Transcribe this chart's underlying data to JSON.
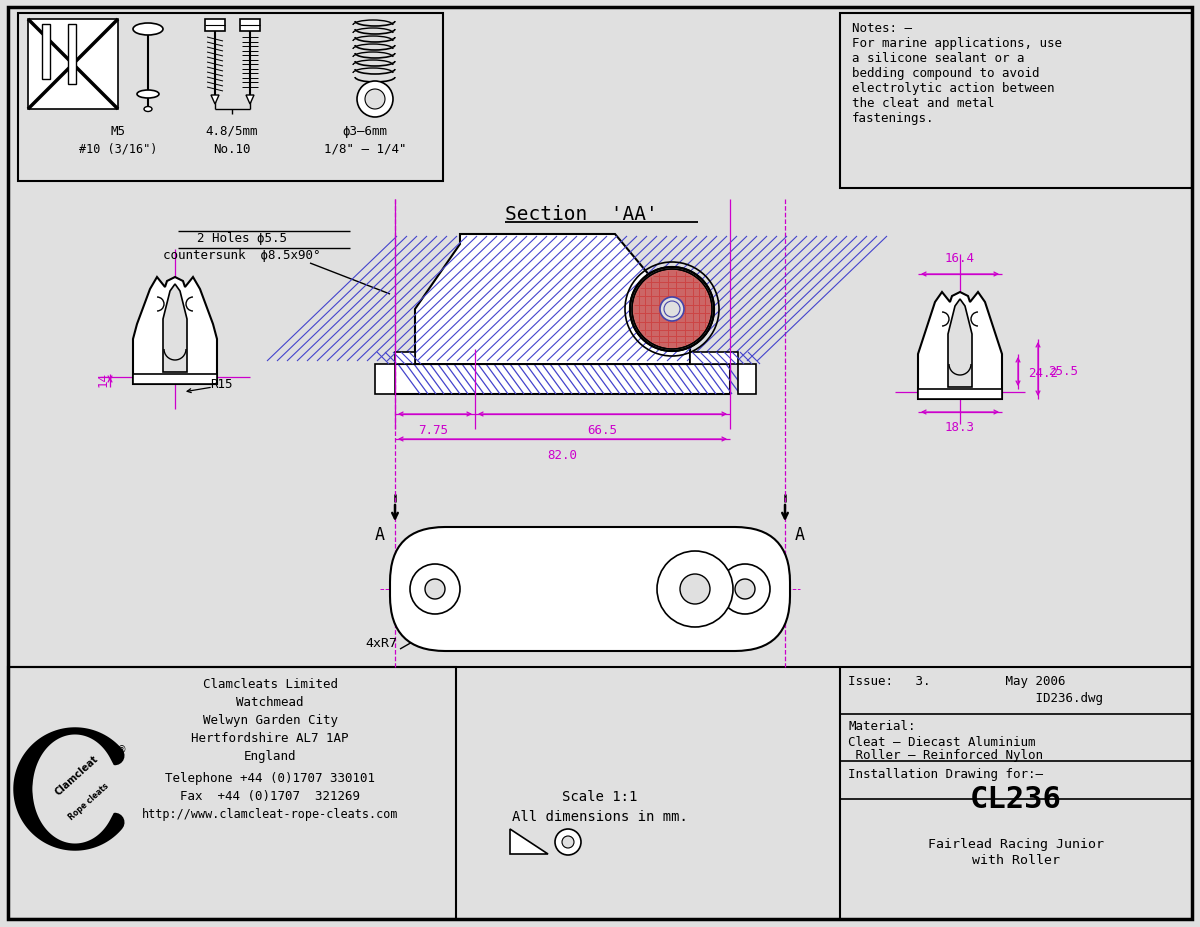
{
  "bg_color": "#e0e0e0",
  "border_color": "#000000",
  "dim_color": "#cc00cc",
  "hatch_color": "#4444cc",
  "roller_fill": "#cc6666",
  "notes_text": "Notes: –\nFor marine applications, use\na silicone sealant or a\nbedding compound to avoid\nelectrolytic action between\nthe cleat and metal\nfastenings.",
  "issue_line1": "Issue:   3.          May 2006",
  "issue_line2": "                         ID236.dwg",
  "material_line1": "Material:",
  "material_line2": "Cleat – Diecast Aluminium",
  "material_line3": " Roller – Reinforced Nylon",
  "installation_text": "Installation Drawing for:–",
  "model_number": "CL236",
  "model_desc1": "Fairlead Racing Junior",
  "model_desc2": "with Roller",
  "company_line1": "Clamcleats Limited",
  "company_line2": "Watchmead",
  "company_line3": "Welwyn Garden City",
  "company_line4": "Hertfordshire AL7 1AP",
  "company_line5": "England",
  "tel_line": "Telephone +44 (0)1707 330101",
  "fax_line": "Fax  +44 (0)1707  321269",
  "web_line": "http://www.clamcleat-rope-cleats.com",
  "scale_line1": "Scale 1:1",
  "scale_line2": "All dimensions in mm.",
  "hole_line1": "2 Holes ϕ5.5",
  "hole_line2": "countersunk  ϕ8.5x90°",
  "section_label": "Section ’AA’",
  "dim_82": "82.0",
  "dim_66": "66.5",
  "dim_7_75": "7.75",
  "dim_16_4": "16.4",
  "dim_24_2": "24.2",
  "dim_25_5": "25.5",
  "dim_18_3": "18.3",
  "dim_14": "14",
  "dim_R15": "R15",
  "dim_4xR7": "4xR7",
  "arrow_A": "A"
}
